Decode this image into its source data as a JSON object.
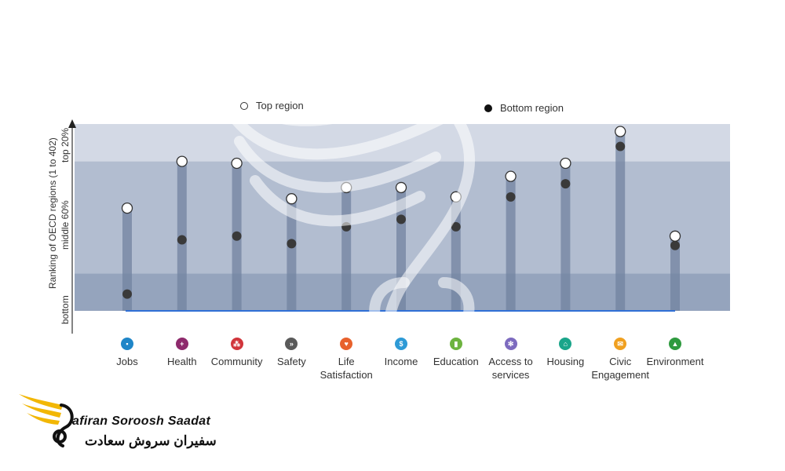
{
  "chart_data": {
    "type": "scatter",
    "ylabel": "Ranking of OECD regions (1 to 402)",
    "bands": [
      "top 20%",
      "middle 60%",
      "bottom"
    ],
    "legend": [
      "Top region",
      "Bottom region"
    ],
    "categories": [
      "Jobs",
      "Health",
      "Community",
      "Safety",
      "Life\nSatisfaction",
      "Income",
      "Education",
      "Access to\nservices",
      "Housing",
      "Civic\nEngagement",
      "Environment"
    ],
    "series": [
      {
        "name": "Top region",
        "values": [
          55,
          80,
          79,
          60,
          66,
          66,
          61,
          72,
          79,
          96,
          40
        ]
      },
      {
        "name": "Bottom region",
        "values": [
          9,
          38,
          40,
          36,
          45,
          49,
          45,
          61,
          68,
          88,
          35
        ]
      }
    ],
    "ylim": [
      0,
      100
    ],
    "colors": {
      "top_marker": "#ffffff",
      "bottom_marker": "#3a3a3a",
      "band_top": "#d3d9e5",
      "band_middle": "#b2bdd0",
      "band_bottom": "#95a4bd",
      "stem": "#7283a0",
      "baseline": "#2f6fd6"
    },
    "icons": [
      {
        "name": "briefcase-icon",
        "color": "#1f86c8",
        "glyph": "▪"
      },
      {
        "name": "health-cross-icon",
        "color": "#8e2a6c",
        "glyph": "+"
      },
      {
        "name": "community-people-icon",
        "color": "#d1353b",
        "glyph": "⁂"
      },
      {
        "name": "safety-runner-icon",
        "color": "#5a5a5a",
        "glyph": "»"
      },
      {
        "name": "heart-icon",
        "color": "#e8612c",
        "glyph": "♥"
      },
      {
        "name": "income-money-icon",
        "color": "#2e9ad6",
        "glyph": "$"
      },
      {
        "name": "education-book-icon",
        "color": "#6db33f",
        "glyph": "▮"
      },
      {
        "name": "services-snowflake-icon",
        "color": "#7d6bbf",
        "glyph": "✻"
      },
      {
        "name": "housing-house-icon",
        "color": "#1aa58a",
        "glyph": "⌂"
      },
      {
        "name": "civic-envelope-icon",
        "color": "#f0a020",
        "glyph": "✉"
      },
      {
        "name": "environment-tree-icon",
        "color": "#2f9a3f",
        "glyph": "▲"
      }
    ]
  },
  "brand": {
    "name_en": "afiran Soroosh Saadat",
    "name_fa": "سفیران سروش سعادت"
  }
}
